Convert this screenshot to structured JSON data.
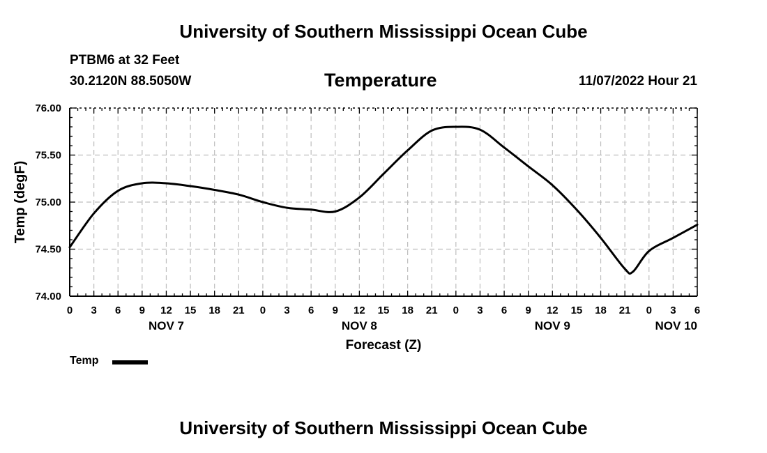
{
  "header": {
    "title": "University of Southern Mississippi Ocean Cube",
    "station": "PTBM6 at 32 Feet",
    "coords": "30.2120N  88.5050W",
    "chart_title": "Temperature",
    "datetime": "11/07/2022 Hour 21"
  },
  "footer": {
    "title": "University of Southern Mississippi Ocean Cube"
  },
  "legend": {
    "label": "Temp"
  },
  "colors": {
    "line": "#000000",
    "grid": "#bdbdbd",
    "background": "#ffffff"
  },
  "chart_data": {
    "type": "line",
    "title": "Temperature",
    "xlabel": "Forecast (Z)",
    "ylabel": "Temp (degF)",
    "xlim": [
      0,
      78
    ],
    "ylim": [
      74.0,
      76.0
    ],
    "grid": true,
    "y_ticks": [
      "74.00",
      "74.50",
      "75.00",
      "75.50",
      "76.00"
    ],
    "y_tick_values": [
      74.0,
      74.5,
      75.0,
      75.5,
      76.0
    ],
    "x_tick_labels": [
      "0",
      "3",
      "6",
      "9",
      "12",
      "15",
      "18",
      "21",
      "0",
      "3",
      "6",
      "9",
      "12",
      "15",
      "18",
      "21",
      "0",
      "3",
      "6",
      "9",
      "12",
      "15",
      "18",
      "21",
      "0",
      "3",
      "6"
    ],
    "date_labels": [
      {
        "label": "NOV 7",
        "hour": 12
      },
      {
        "label": "NOV 8",
        "hour": 36
      },
      {
        "label": "NOV 9",
        "hour": 60
      },
      {
        "label": "NOV 10",
        "hour": 78
      }
    ],
    "series": [
      {
        "name": "Temp",
        "hours": [
          0,
          3,
          6,
          9,
          12,
          15,
          18,
          21,
          24,
          27,
          30,
          33,
          36,
          39,
          42,
          45,
          48,
          51,
          54,
          57,
          60,
          63,
          66,
          69,
          70,
          72,
          75,
          78
        ],
        "values": [
          74.52,
          74.88,
          75.12,
          75.2,
          75.2,
          75.17,
          75.13,
          75.08,
          75.0,
          74.94,
          74.92,
          74.9,
          75.05,
          75.3,
          75.55,
          75.76,
          75.8,
          75.77,
          75.58,
          75.38,
          75.18,
          74.92,
          74.62,
          74.29,
          74.26,
          74.48,
          74.62,
          74.76
        ]
      }
    ]
  }
}
